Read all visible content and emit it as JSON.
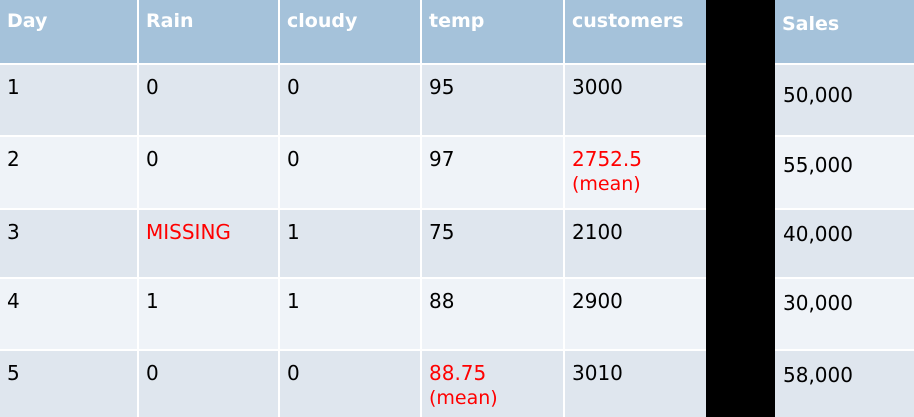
{
  "main_table": {
    "headers": [
      "Day",
      "Rain",
      "cloudy",
      "temp",
      "customers"
    ],
    "rows": [
      [
        "1",
        "0",
        "0",
        "95",
        "3000"
      ],
      [
        "2",
        "0",
        "0",
        "97",
        "2752.5"
      ],
      [
        "3",
        "MISSING",
        "1",
        "75",
        "2100"
      ],
      [
        "4",
        "1",
        "1",
        "88",
        "2900"
      ],
      [
        "5",
        "0",
        "0",
        "88.75",
        "3010"
      ]
    ],
    "imputed_note": "(mean)"
  },
  "sales_table": {
    "header": "Sales",
    "values": [
      "50,000",
      "55,000",
      "40,000",
      "30,000",
      "58,000"
    ]
  },
  "colors": {
    "header_bg": "#a5c2da",
    "row_odd": "#dfe6ee",
    "row_even": "#eff3f8",
    "highlight_text": "#ff0000",
    "background": "#000000"
  }
}
